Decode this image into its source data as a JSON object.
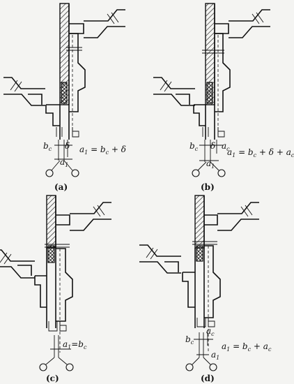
{
  "panels": [
    {
      "id": "a",
      "caption": "(a)",
      "labels": [
        "b",
        "δ",
        "a"
      ],
      "formula": "a₁ = b꜀ + δ"
    },
    {
      "id": "b",
      "caption": "(b)",
      "labels": [
        "b",
        "δ",
        "a꜀",
        "a"
      ],
      "formula": "a₁ = b꜀ + δ + a꜀"
    },
    {
      "id": "c",
      "caption": "(c)",
      "labels": [],
      "formula": "a₁=b꜀"
    },
    {
      "id": "d",
      "caption": "(d)",
      "labels": [
        "b꜀",
        "a꜀",
        "a₁"
      ],
      "formula": "a₁ = b꜀ + a꜀"
    }
  ]
}
